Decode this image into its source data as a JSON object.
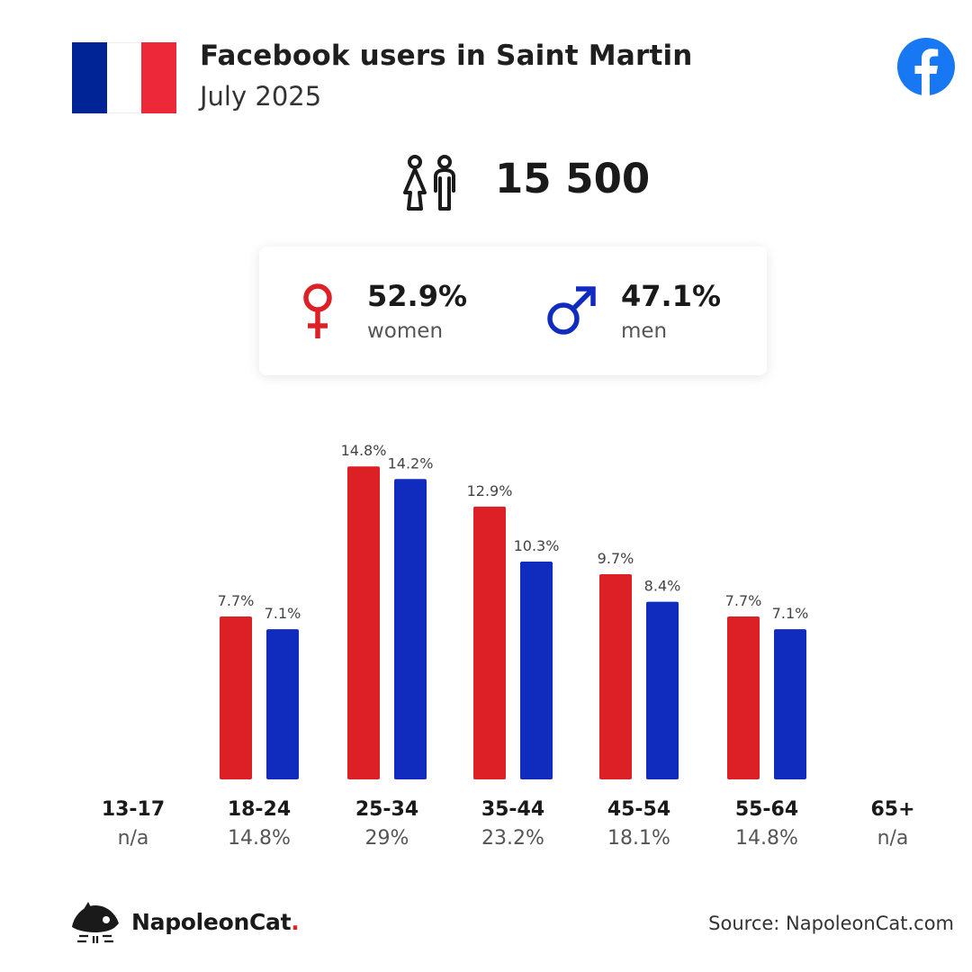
{
  "header": {
    "title": "Facebook users in Saint Martin",
    "subtitle": "July 2025"
  },
  "colors": {
    "women": "#dd1f26",
    "men": "#0f2cbf",
    "flag_blue": "#002395",
    "flag_white": "#ffffff",
    "flag_red": "#ed2939",
    "facebook": "#1877f2"
  },
  "icons": {
    "flag": "france-flag-icon",
    "facebook": "facebook-logo-icon",
    "total": "people-icon",
    "women": "female-symbol-icon",
    "men": "male-symbol-icon",
    "brand": "napoleoncat-logo-icon"
  },
  "total": {
    "value": "15 500"
  },
  "gender": {
    "women_pct": "52.9%",
    "women_label": "women",
    "men_pct": "47.1%",
    "men_label": "men"
  },
  "chart_data": {
    "type": "bar",
    "categories": [
      "13-17",
      "18-24",
      "25-34",
      "35-44",
      "45-54",
      "55-64",
      "65+"
    ],
    "category_totals": [
      "n/a",
      "14.8%",
      "29%",
      "23.2%",
      "18.1%",
      "14.8%",
      "n/a"
    ],
    "series": [
      {
        "values": [
          null,
          7.7,
          14.8,
          12.9,
          9.7,
          7.7,
          null
        ],
        "labels": [
          "",
          "7.7%",
          "14.8%",
          "12.9%",
          "9.7%",
          "7.7%",
          ""
        ]
      },
      {
        "values": [
          null,
          7.1,
          14.2,
          10.3,
          8.4,
          7.1,
          null
        ],
        "labels": [
          "",
          "7.1%",
          "14.2%",
          "10.3%",
          "8.4%",
          "7.1%",
          ""
        ]
      }
    ],
    "grid": false,
    "legend": "none"
  },
  "footer": {
    "brand": "NapoleonCat",
    "brand_dot": ".",
    "source": "Source: NapoleonCat.com"
  }
}
